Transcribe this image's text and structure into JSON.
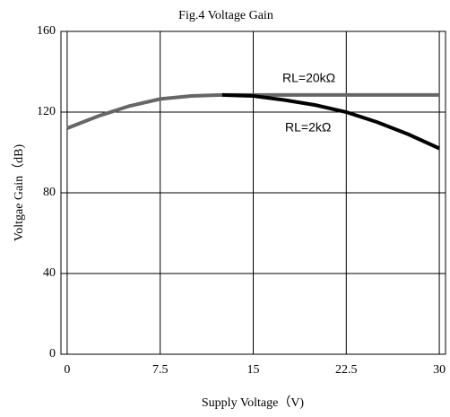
{
  "chart_data": {
    "type": "line",
    "title": "Fig.4 Voltage Gain",
    "x_label": "Supply Voltage（V)",
    "y_label": "Voltgae Gain（dB)",
    "x": [
      0,
      2.5,
      5,
      7.5,
      10,
      12.5,
      15,
      17.5,
      20,
      22.5,
      25,
      27.5,
      30
    ],
    "series": [
      {
        "name": "RL=20kΩ",
        "color": "#666666",
        "values": [
          112,
          118,
          123,
          126.5,
          128,
          128.5,
          128.5,
          128.5,
          128.5,
          128.5,
          128.5,
          128.5,
          128.5
        ]
      },
      {
        "name": "RL=2kΩ",
        "color": "#000000",
        "values": [
          null,
          null,
          null,
          null,
          null,
          128.5,
          128,
          126,
          123.5,
          120,
          115,
          109,
          102
        ]
      }
    ],
    "xlim": [
      -0.5,
      30.5
    ],
    "xticks": [
      0,
      7.5,
      15,
      22.5,
      30
    ],
    "ylim": [
      0,
      160
    ],
    "yticks": [
      0,
      40,
      80,
      120,
      160
    ],
    "grid": true
  }
}
